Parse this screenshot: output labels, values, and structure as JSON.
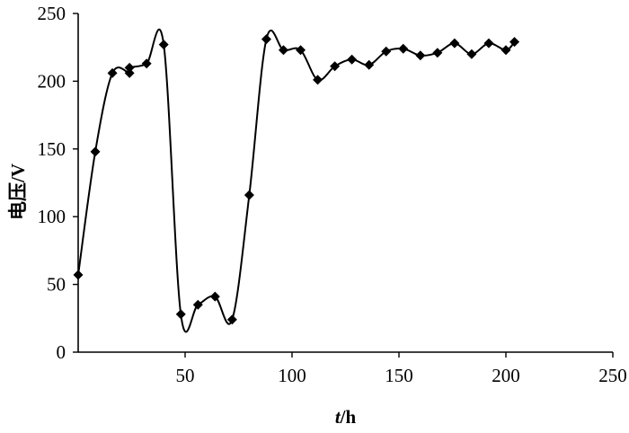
{
  "chart_data": {
    "type": "line",
    "title": "",
    "xlabel": {
      "italic": "t",
      "rest": "/h"
    },
    "ylabel": "电压/V",
    "xlim": [
      0,
      250
    ],
    "ylim": [
      0,
      250
    ],
    "xticks": [
      50,
      100,
      150,
      200,
      250
    ],
    "yticks": [
      0,
      50,
      100,
      150,
      200,
      250
    ],
    "grid": false,
    "legend": "none",
    "series": [
      {
        "color": "#000000",
        "marker": "diamond",
        "x": [
          0,
          8,
          16,
          24,
          24,
          32,
          40,
          48,
          56,
          64,
          72,
          80,
          88,
          96,
          104,
          112,
          120,
          128,
          136,
          144,
          152,
          160,
          168,
          176,
          184,
          192,
          200,
          204
        ],
        "y": [
          57,
          148,
          206,
          206,
          210,
          213,
          227,
          28,
          35,
          41,
          24,
          116,
          231,
          223,
          223,
          201,
          211,
          216,
          212,
          222,
          224,
          219,
          221,
          228,
          220,
          228,
          223,
          229
        ]
      }
    ]
  }
}
